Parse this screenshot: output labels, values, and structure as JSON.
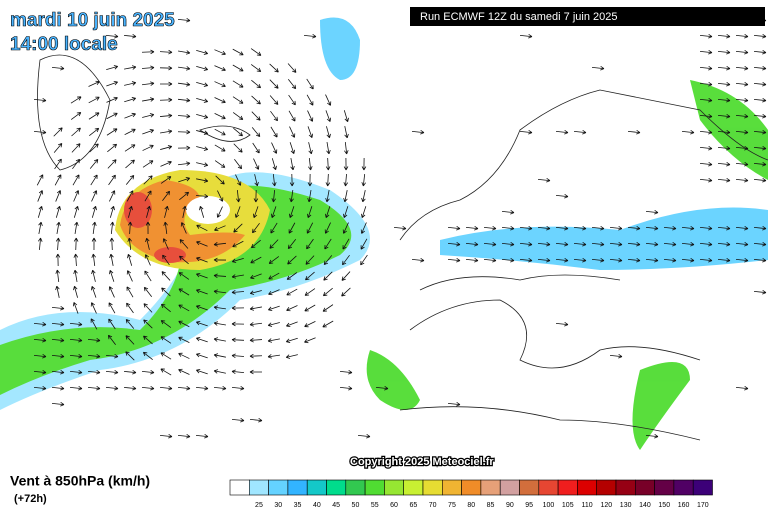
{
  "header": {
    "date": "mardi 10 juin 2025",
    "time": "14:00 locale",
    "run": "Run ECMWF 12Z du samedi 7 juin 2025"
  },
  "copyright": "Copyright 2025 Meteociel.fr",
  "footer": {
    "title": "Vent à 850hPa (km/h)",
    "lead": "(+72h)"
  },
  "legend": {
    "colors": [
      "#ffffff",
      "#a0e6ff",
      "#64d2ff",
      "#32b4ff",
      "#14c8c8",
      "#00dc8c",
      "#32c850",
      "#50dc32",
      "#96e632",
      "#c8f032",
      "#e6dc32",
      "#f0b432",
      "#f08c28",
      "#e6a078",
      "#d2a0a0",
      "#d26e3c",
      "#e64632",
      "#f01e1e",
      "#dc0000",
      "#b40000",
      "#960014",
      "#780028",
      "#640046",
      "#500064",
      "#3c0078"
    ],
    "labels": [
      25,
      30,
      35,
      40,
      45,
      50,
      55,
      60,
      65,
      70,
      75,
      80,
      85,
      90,
      95,
      100,
      105,
      110,
      120,
      130,
      140,
      150,
      160,
      170
    ]
  }
}
